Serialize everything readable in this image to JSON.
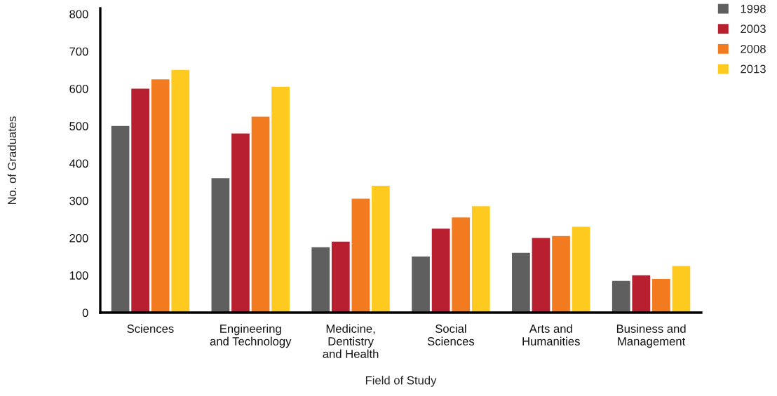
{
  "chart_data": {
    "type": "bar",
    "xlabel": "Field of Study",
    "ylabel": "No. of Graduates",
    "categories": [
      "Sciences",
      "Engineering\nand Technology",
      "Medicine,\nDentistry\nand Health",
      "Social\nSciences",
      "Arts and\nHumanities",
      "Business and\nManagement"
    ],
    "series": [
      {
        "name": "1998",
        "color": "#5f5f5f",
        "values": [
          500,
          360,
          175,
          150,
          160,
          85
        ]
      },
      {
        "name": "2003",
        "color": "#b82030",
        "values": [
          600,
          480,
          190,
          225,
          200,
          100
        ]
      },
      {
        "name": "2008",
        "color": "#f27b20",
        "values": [
          625,
          525,
          305,
          255,
          205,
          90
        ]
      },
      {
        "name": "2013",
        "color": "#ffca20",
        "values": [
          650,
          605,
          340,
          285,
          230,
          125
        ]
      }
    ],
    "ylim": [
      0,
      815
    ],
    "yticks": [
      0,
      100,
      200,
      300,
      400,
      500,
      600,
      700,
      800
    ],
    "legend": "top right",
    "grid": false
  }
}
